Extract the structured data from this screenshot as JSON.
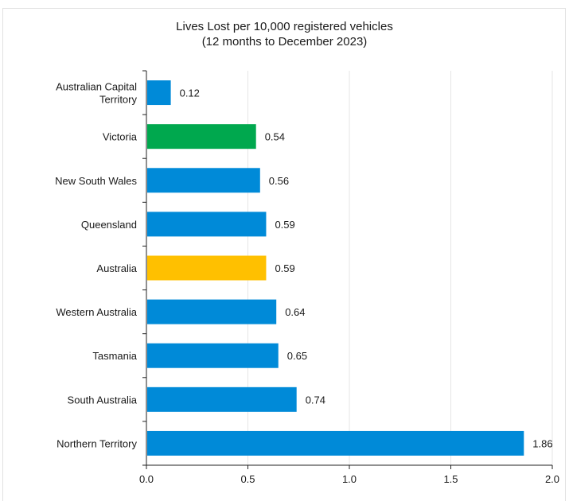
{
  "chart_data": {
    "type": "bar",
    "orientation": "horizontal",
    "title": "Lives Lost per 10,000 registered vehicles",
    "subtitle": "(12 months to December 2023)",
    "categories": [
      [
        "Australian Capital",
        "Territory"
      ],
      [
        "Victoria"
      ],
      [
        "New South Wales"
      ],
      [
        "Queensland"
      ],
      [
        "Australia"
      ],
      [
        "Western Australia"
      ],
      [
        "Tasmania"
      ],
      [
        "South Australia"
      ],
      [
        "Northern Territory"
      ]
    ],
    "values": [
      0.12,
      0.54,
      0.56,
      0.59,
      0.59,
      0.64,
      0.65,
      0.74,
      1.86
    ],
    "value_labels": [
      "0.12",
      "0.54",
      "0.56",
      "0.59",
      "0.59",
      "0.64",
      "0.65",
      "0.74",
      "1.86"
    ],
    "bar_colors": [
      "#008ad8",
      "#00a84e",
      "#008ad8",
      "#008ad8",
      "#ffc000",
      "#008ad8",
      "#008ad8",
      "#008ad8",
      "#008ad8"
    ],
    "xlim": [
      0,
      2
    ],
    "x_ticks": [
      "0.0",
      "0.5",
      "1.0",
      "1.5",
      "2.0"
    ],
    "x_tick_values": [
      0,
      0.5,
      1.0,
      1.5,
      2.0
    ],
    "grid": true,
    "xlabel": "",
    "ylabel": ""
  }
}
